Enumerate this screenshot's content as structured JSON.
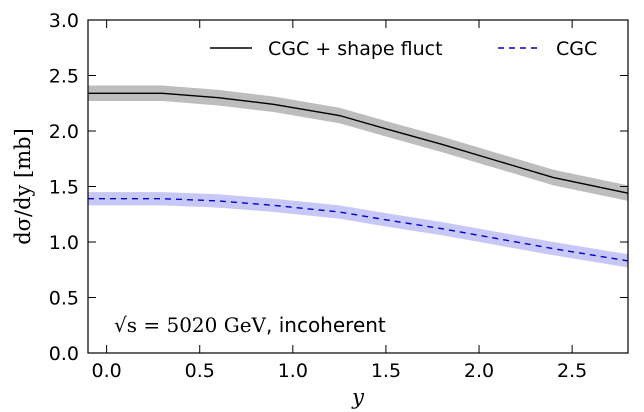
{
  "chart_data": {
    "type": "line",
    "title": "",
    "xlabel": "y",
    "ylabel": "dσ/dy [mb]",
    "xlim": [
      -0.1,
      2.8
    ],
    "ylim": [
      0.0,
      3.0
    ],
    "x_ticks": [
      "0.0",
      "0.5",
      "1.0",
      "1.5",
      "2.0",
      "2.5"
    ],
    "y_ticks": [
      "0.0",
      "0.5",
      "1.0",
      "1.5",
      "2.0",
      "2.5",
      "3.0"
    ],
    "grid": false,
    "legend_position": "top-right",
    "annotation": {
      "math": "√s = 5020 GeV",
      "text": ", incoherent"
    },
    "series": [
      {
        "name": "CGC + shape fluct",
        "style": "solid",
        "color": "#000000",
        "band_color": "#bdbdbd",
        "x": [
          -0.1,
          0.0,
          0.3,
          0.6,
          0.9,
          1.25,
          1.5,
          1.8,
          2.1,
          2.4,
          2.8
        ],
        "y": [
          2.34,
          2.34,
          2.34,
          2.3,
          2.24,
          2.14,
          2.02,
          1.88,
          1.73,
          1.58,
          1.44
        ],
        "band": 0.07
      },
      {
        "name": "CGC",
        "style": "dashed",
        "color": "#0000cc",
        "band_color": "#c8c8f8",
        "x": [
          -0.1,
          0.0,
          0.3,
          0.6,
          0.9,
          1.25,
          1.5,
          1.8,
          2.1,
          2.4,
          2.8
        ],
        "y": [
          1.39,
          1.39,
          1.39,
          1.37,
          1.33,
          1.27,
          1.2,
          1.12,
          1.03,
          0.94,
          0.83
        ],
        "band": 0.06
      }
    ]
  }
}
